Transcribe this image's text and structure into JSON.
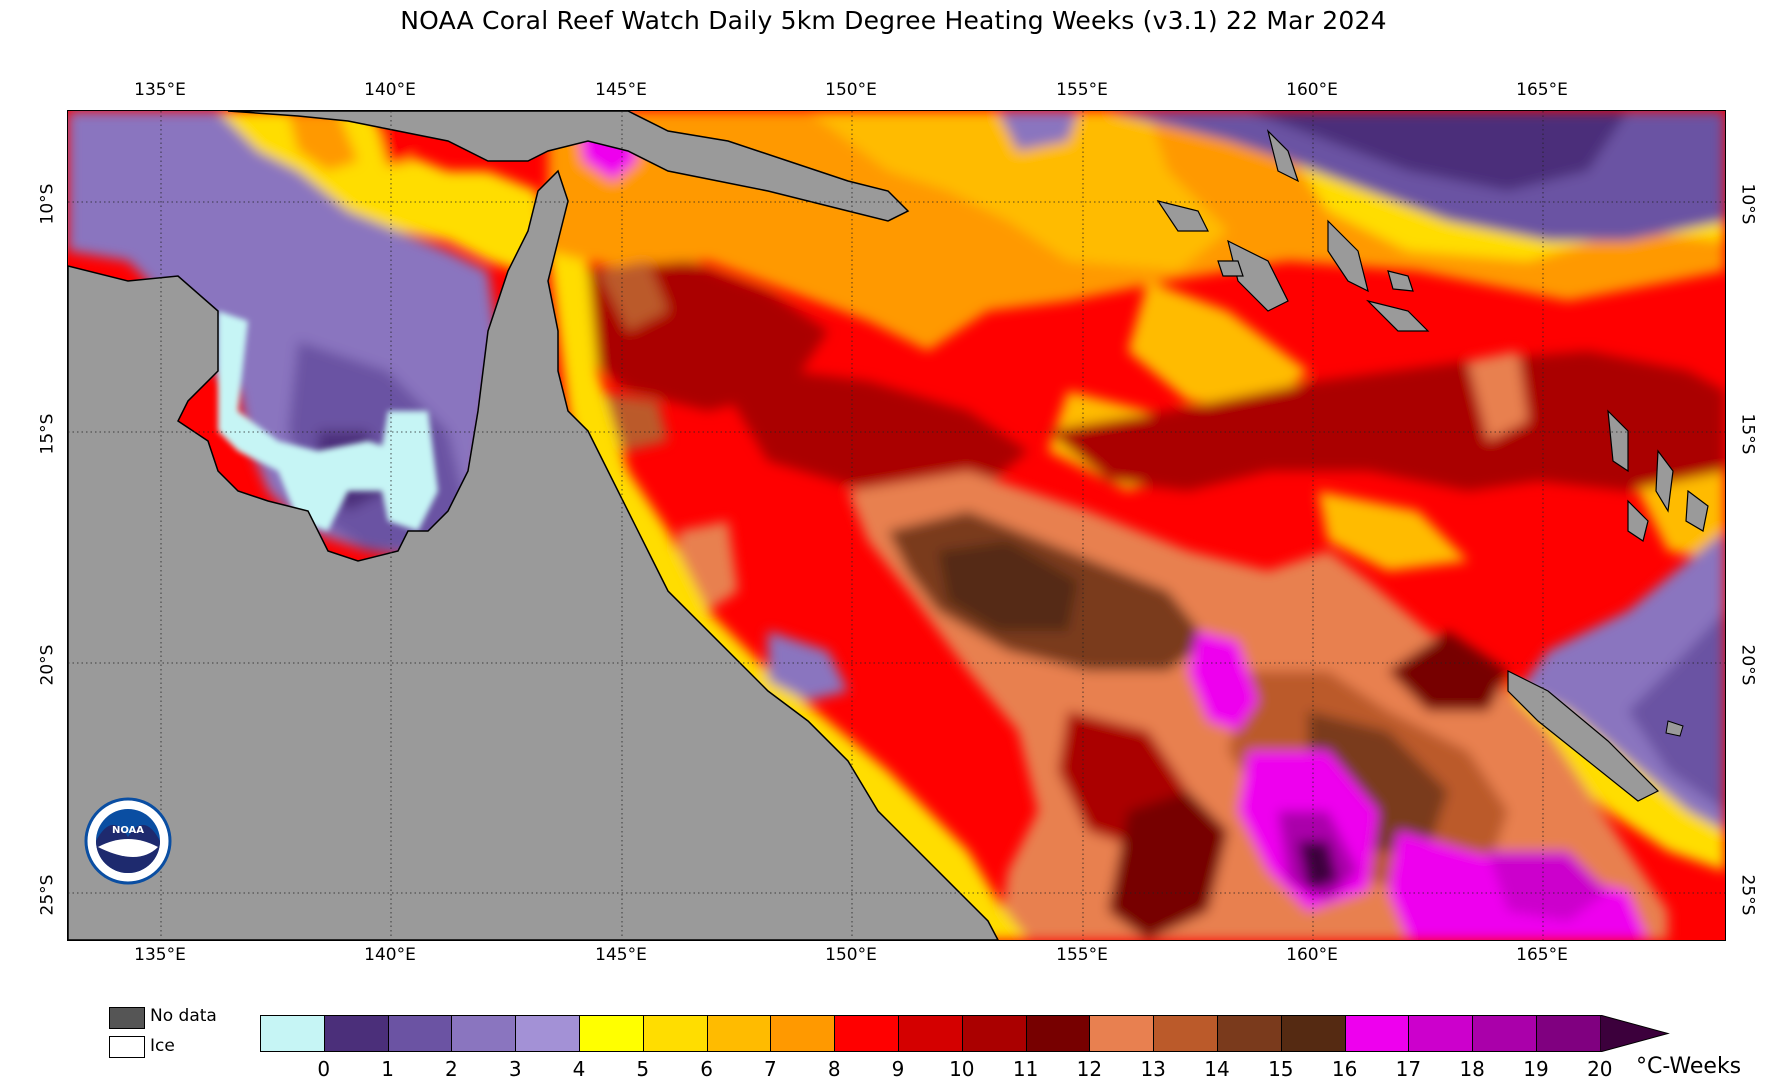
{
  "title": "NOAA Coral Reef Watch Daily 5km Degree Heating Weeks  (v3.1)   22 Mar 2024",
  "longitude_labels": [
    "135°E",
    "140°E",
    "145°E",
    "150°E",
    "155°E",
    "160°E",
    "165°E"
  ],
  "latitude_labels": [
    "10°S",
    "15°S",
    "20°S",
    "25°S"
  ],
  "map": {
    "region": "Coral Sea / Great Barrier Reef, NE Australia",
    "land_color": "#9a9a9a",
    "logo": "NOAA logo"
  },
  "legend": {
    "no_data_label": "No data",
    "no_data_color": "#555555",
    "ice_label": "Ice",
    "ice_color": "#ffffff"
  },
  "colorbar": {
    "unit": "°C-Weeks",
    "tick_labels": [
      "0",
      "1",
      "2",
      "3",
      "4",
      "5",
      "6",
      "7",
      "8",
      "9",
      "10",
      "11",
      "12",
      "13",
      "14",
      "15",
      "16",
      "17",
      "18",
      "19",
      "20"
    ],
    "colors": [
      "#c6f5f5",
      "#4b2f7a",
      "#6b53a3",
      "#8a75bf",
      "#a391d6",
      "#ffff00",
      "#ffdd00",
      "#ffbb00",
      "#ff9900",
      "#ff0000",
      "#d40000",
      "#aa0000",
      "#770000",
      "#e88050",
      "#bb5a2a",
      "#7a3a1c",
      "#552a12",
      "#ee00ee",
      "#cc00cc",
      "#aa00aa",
      "#800080"
    ],
    "arrow_color": "#3c003c"
  }
}
